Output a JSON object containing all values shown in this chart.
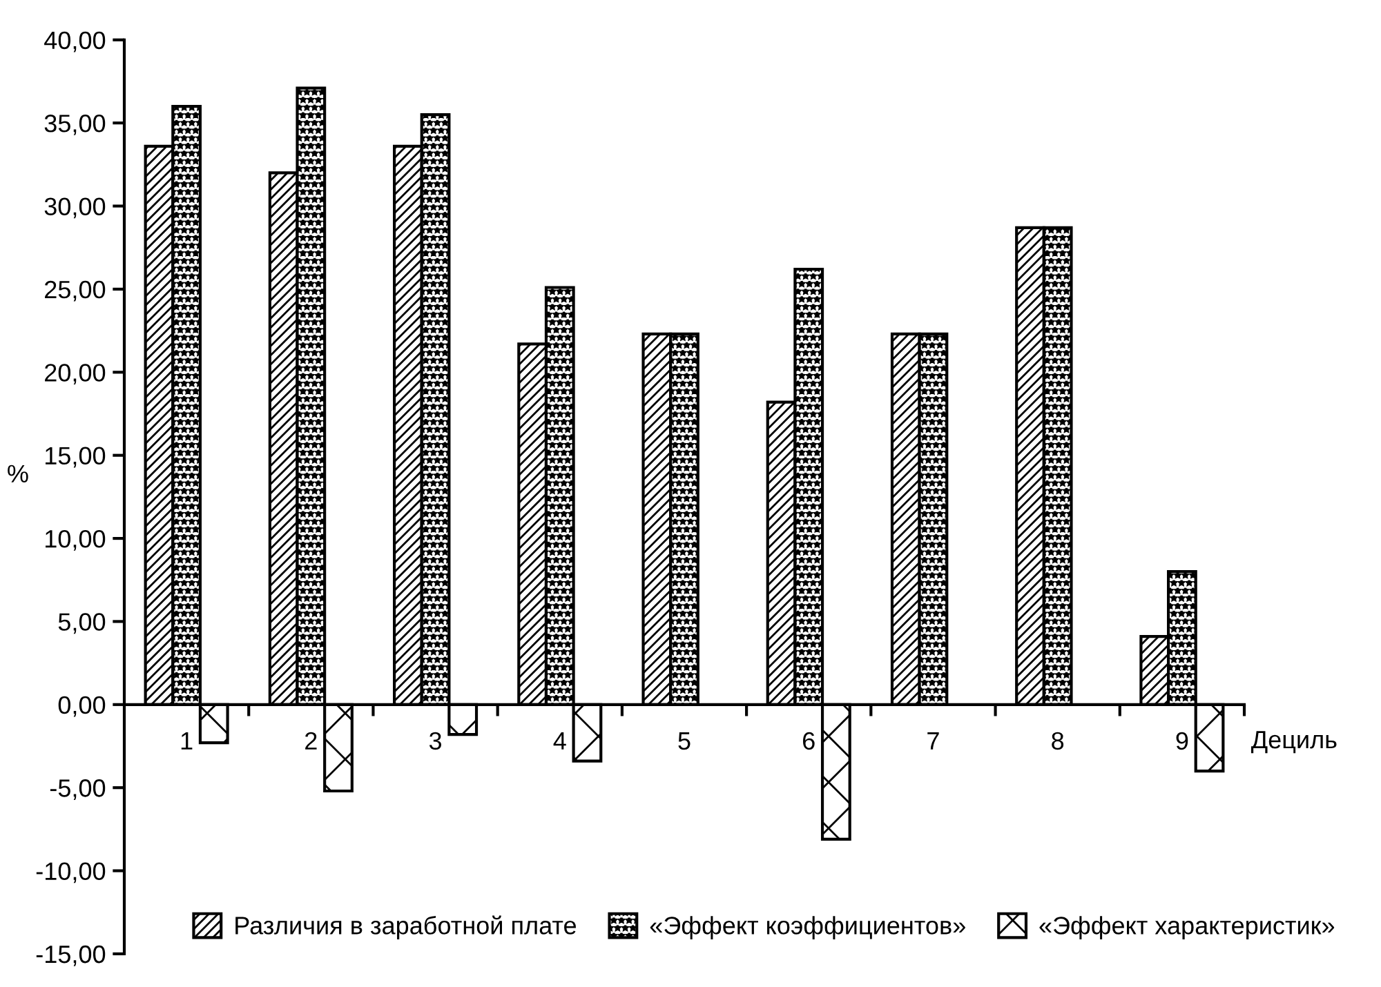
{
  "chart_data": {
    "type": "bar",
    "xlabel": "Дециль",
    "ylabel": "%",
    "categories": [
      "1",
      "2",
      "3",
      "4",
      "5",
      "6",
      "7",
      "8",
      "9"
    ],
    "series": [
      {
        "name": "Различия в заработной плате",
        "color": "#000000",
        "values": [
          33.6,
          32.0,
          33.6,
          21.7,
          22.3,
          18.2,
          22.3,
          28.7,
          4.1
        ]
      },
      {
        "name": "«Эффект коэффициентов»",
        "color": "#000000",
        "values": [
          36.0,
          37.1,
          35.5,
          25.1,
          22.3,
          26.2,
          22.3,
          28.7,
          8.0
        ]
      },
      {
        "name": "«Эффект характеристик»",
        "color": "#000000",
        "values": [
          -2.3,
          -5.2,
          -1.8,
          -3.4,
          null,
          -8.1,
          null,
          null,
          -4.0
        ]
      }
    ],
    "ylim": [
      -15,
      40
    ],
    "yticks": [
      {
        "value": -15,
        "label": "-15,00"
      },
      {
        "value": -10,
        "label": "-10,00"
      },
      {
        "value": -5,
        "label": "-5,00"
      },
      {
        "value": 0,
        "label": "0,00"
      },
      {
        "value": 5,
        "label": "5,00"
      },
      {
        "value": 10,
        "label": "10,00"
      },
      {
        "value": 15,
        "label": "15,00"
      },
      {
        "value": 20,
        "label": "20,00"
      },
      {
        "value": 25,
        "label": "25,00"
      },
      {
        "value": 30,
        "label": "30,00"
      },
      {
        "value": 35,
        "label": "35,00"
      },
      {
        "value": 40,
        "label": "40,00"
      }
    ],
    "legend": "bottom right"
  }
}
